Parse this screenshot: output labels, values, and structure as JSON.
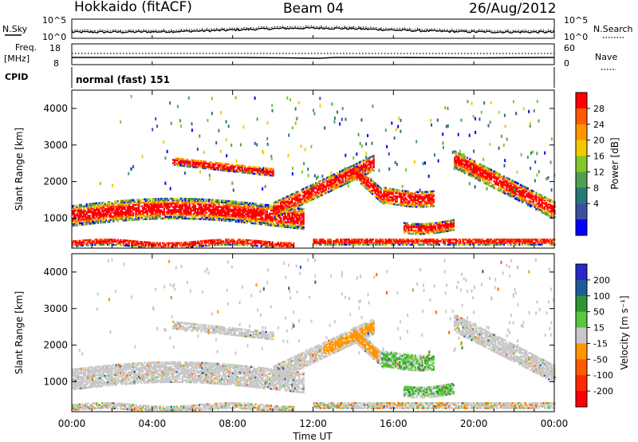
{
  "header": {
    "station": "Hokkaido (fitACF)",
    "beam": "Beam 04",
    "date": "26/Aug/2012"
  },
  "params": {
    "nsky_label": "N.Sky",
    "nsearch_label": "N.Search",
    "freq_label": "Freq.",
    "freq_unit": "[MHz]",
    "nave_label": "Nave",
    "cpid_label": "CPID",
    "cpid_value": "normal (fast) 151",
    "noise_ticks_left": [
      "10^5",
      "10^0"
    ],
    "noise_ticks_right": [
      "10^5",
      "10^0"
    ],
    "freq_ticks": [
      "18",
      "8"
    ],
    "nave_ticks": [
      "60",
      "0"
    ]
  },
  "chart_data": [
    {
      "type": "heatmap",
      "name": "power",
      "ylabel": "Slant Range [km]",
      "colorbar_label": "Power [dB]",
      "colorbar_ticks": [
        "28",
        "24",
        "20",
        "16",
        "12",
        "8",
        "4"
      ],
      "colorbar_colors": [
        "#ff0000",
        "#ff5a00",
        "#ff9600",
        "#f5c800",
        "#82c828",
        "#50a050",
        "#287878",
        "#3c50a0",
        "#0000ff"
      ],
      "y_ticks": [
        1000,
        2000,
        3000,
        4000
      ],
      "ylim": [
        180,
        4500
      ],
      "x_ticks": [
        "00:00",
        "04:00",
        "08:00",
        "12:00",
        "16:00",
        "20:00",
        "00:00"
      ],
      "xlim_hours": [
        0,
        24
      ]
    },
    {
      "type": "heatmap",
      "name": "velocity",
      "ylabel": "Slant Range [km]",
      "colorbar_label": "Velocity [m s⁻¹]",
      "colorbar_ticks": [
        "200",
        "100",
        "50",
        "15",
        "-15",
        "-50",
        "-100",
        "-200"
      ],
      "colorbar_colors": [
        "#2828c8",
        "#1e5a9b",
        "#2d9632",
        "#5ac83c",
        "#c8c8c8",
        "#ff9600",
        "#ff5a00",
        "#ff2800",
        "#ff0000"
      ],
      "y_ticks": [
        1000,
        2000,
        3000,
        4000
      ],
      "ylim": [
        180,
        4500
      ],
      "x_ticks": [
        "00:00",
        "04:00",
        "08:00",
        "12:00",
        "16:00",
        "20:00",
        "00:00"
      ],
      "xlim_hours": [
        0,
        24
      ],
      "xlabel": "Time UT"
    }
  ]
}
